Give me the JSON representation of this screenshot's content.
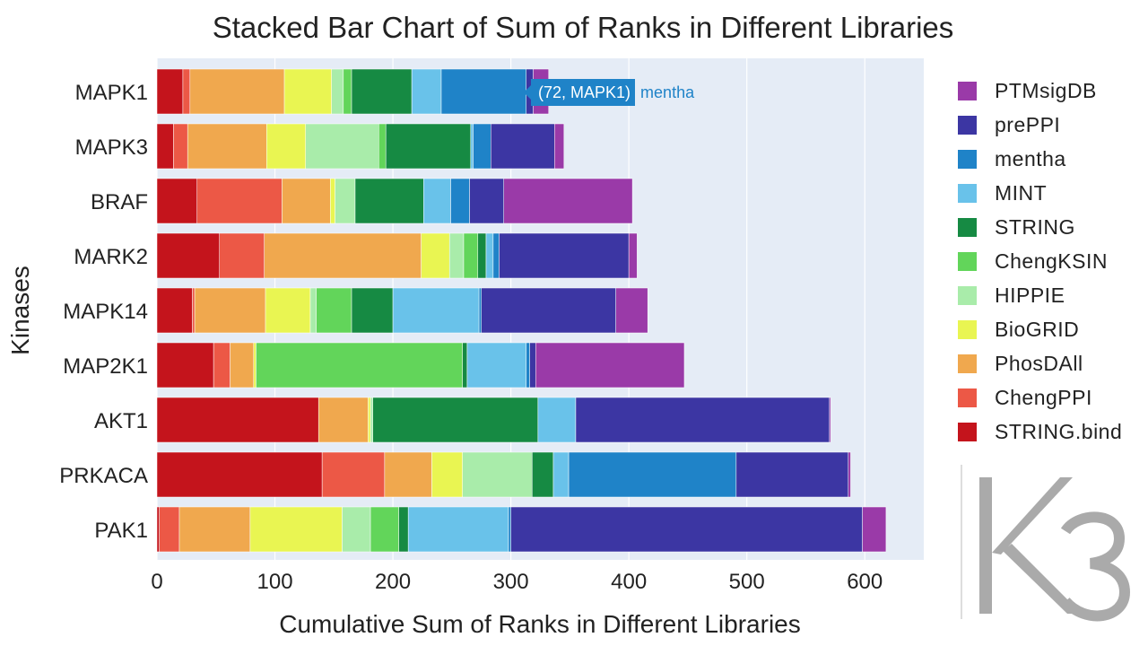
{
  "chart_data": {
    "type": "bar",
    "orientation": "horizontal",
    "stacked": true,
    "title": "Stacked Bar Chart of Sum of Ranks in Different Libraries",
    "xlabel": "Cumulative Sum of Ranks in Different Libraries",
    "ylabel": "Kinases",
    "xlim": [
      0,
      650
    ],
    "xticks": [
      0,
      100,
      200,
      300,
      400,
      500,
      600
    ],
    "grid": true,
    "legend_position": "right",
    "categories": [
      "MAPK1",
      "MAPK3",
      "BRAF",
      "MARK2",
      "MAPK14",
      "MAP2K1",
      "AKT1",
      "PRKACA",
      "PAK1"
    ],
    "series": [
      {
        "name": "STRING.bind",
        "color": "#c4141c",
        "values": [
          22,
          14,
          34,
          53,
          30,
          48,
          137,
          140,
          2
        ]
      },
      {
        "name": "ChengPPI",
        "color": "#ec5846",
        "values": [
          6,
          12,
          72,
          38,
          2,
          14,
          0,
          53,
          17
        ]
      },
      {
        "name": "PhosDAll",
        "color": "#f0a84e",
        "values": [
          80,
          67,
          41,
          133,
          60,
          20,
          42,
          40,
          60
        ]
      },
      {
        "name": "BioGRID",
        "color": "#e9f552",
        "values": [
          40,
          33,
          4,
          24,
          38,
          2,
          2,
          26,
          78
        ]
      },
      {
        "name": "HIPPIE",
        "color": "#a9ecaa",
        "values": [
          10,
          62,
          17,
          12,
          5,
          0,
          2,
          59,
          24
        ]
      },
      {
        "name": "ChengKSIN",
        "color": "#62d55a",
        "values": [
          7,
          6,
          0,
          12,
          30,
          175,
          0,
          0,
          24
        ]
      },
      {
        "name": "STRING",
        "color": "#168a43",
        "values": [
          51,
          72,
          58,
          7,
          35,
          4,
          140,
          18,
          8
        ]
      },
      {
        "name": "MINT",
        "color": "#69c2ea",
        "values": [
          25,
          2,
          23,
          6,
          73,
          50,
          32,
          13,
          85
        ]
      },
      {
        "name": "mentha",
        "color": "#1f83c8",
        "values": [
          72,
          15,
          16,
          5,
          2,
          3,
          0,
          142,
          2
        ]
      },
      {
        "name": "prePPI",
        "color": "#3c36a3",
        "values": [
          6,
          54,
          29,
          110,
          114,
          5,
          215,
          95,
          298
        ]
      },
      {
        "name": "PTMsigDB",
        "color": "#9a3aa8",
        "values": [
          13,
          8,
          109,
          7,
          27,
          126,
          1,
          2,
          20
        ]
      }
    ],
    "hover": {
      "label": "(72, MAPK1)",
      "series": "mentha"
    }
  },
  "logo": {
    "text": "K3",
    "color": "#aaaaaa"
  }
}
